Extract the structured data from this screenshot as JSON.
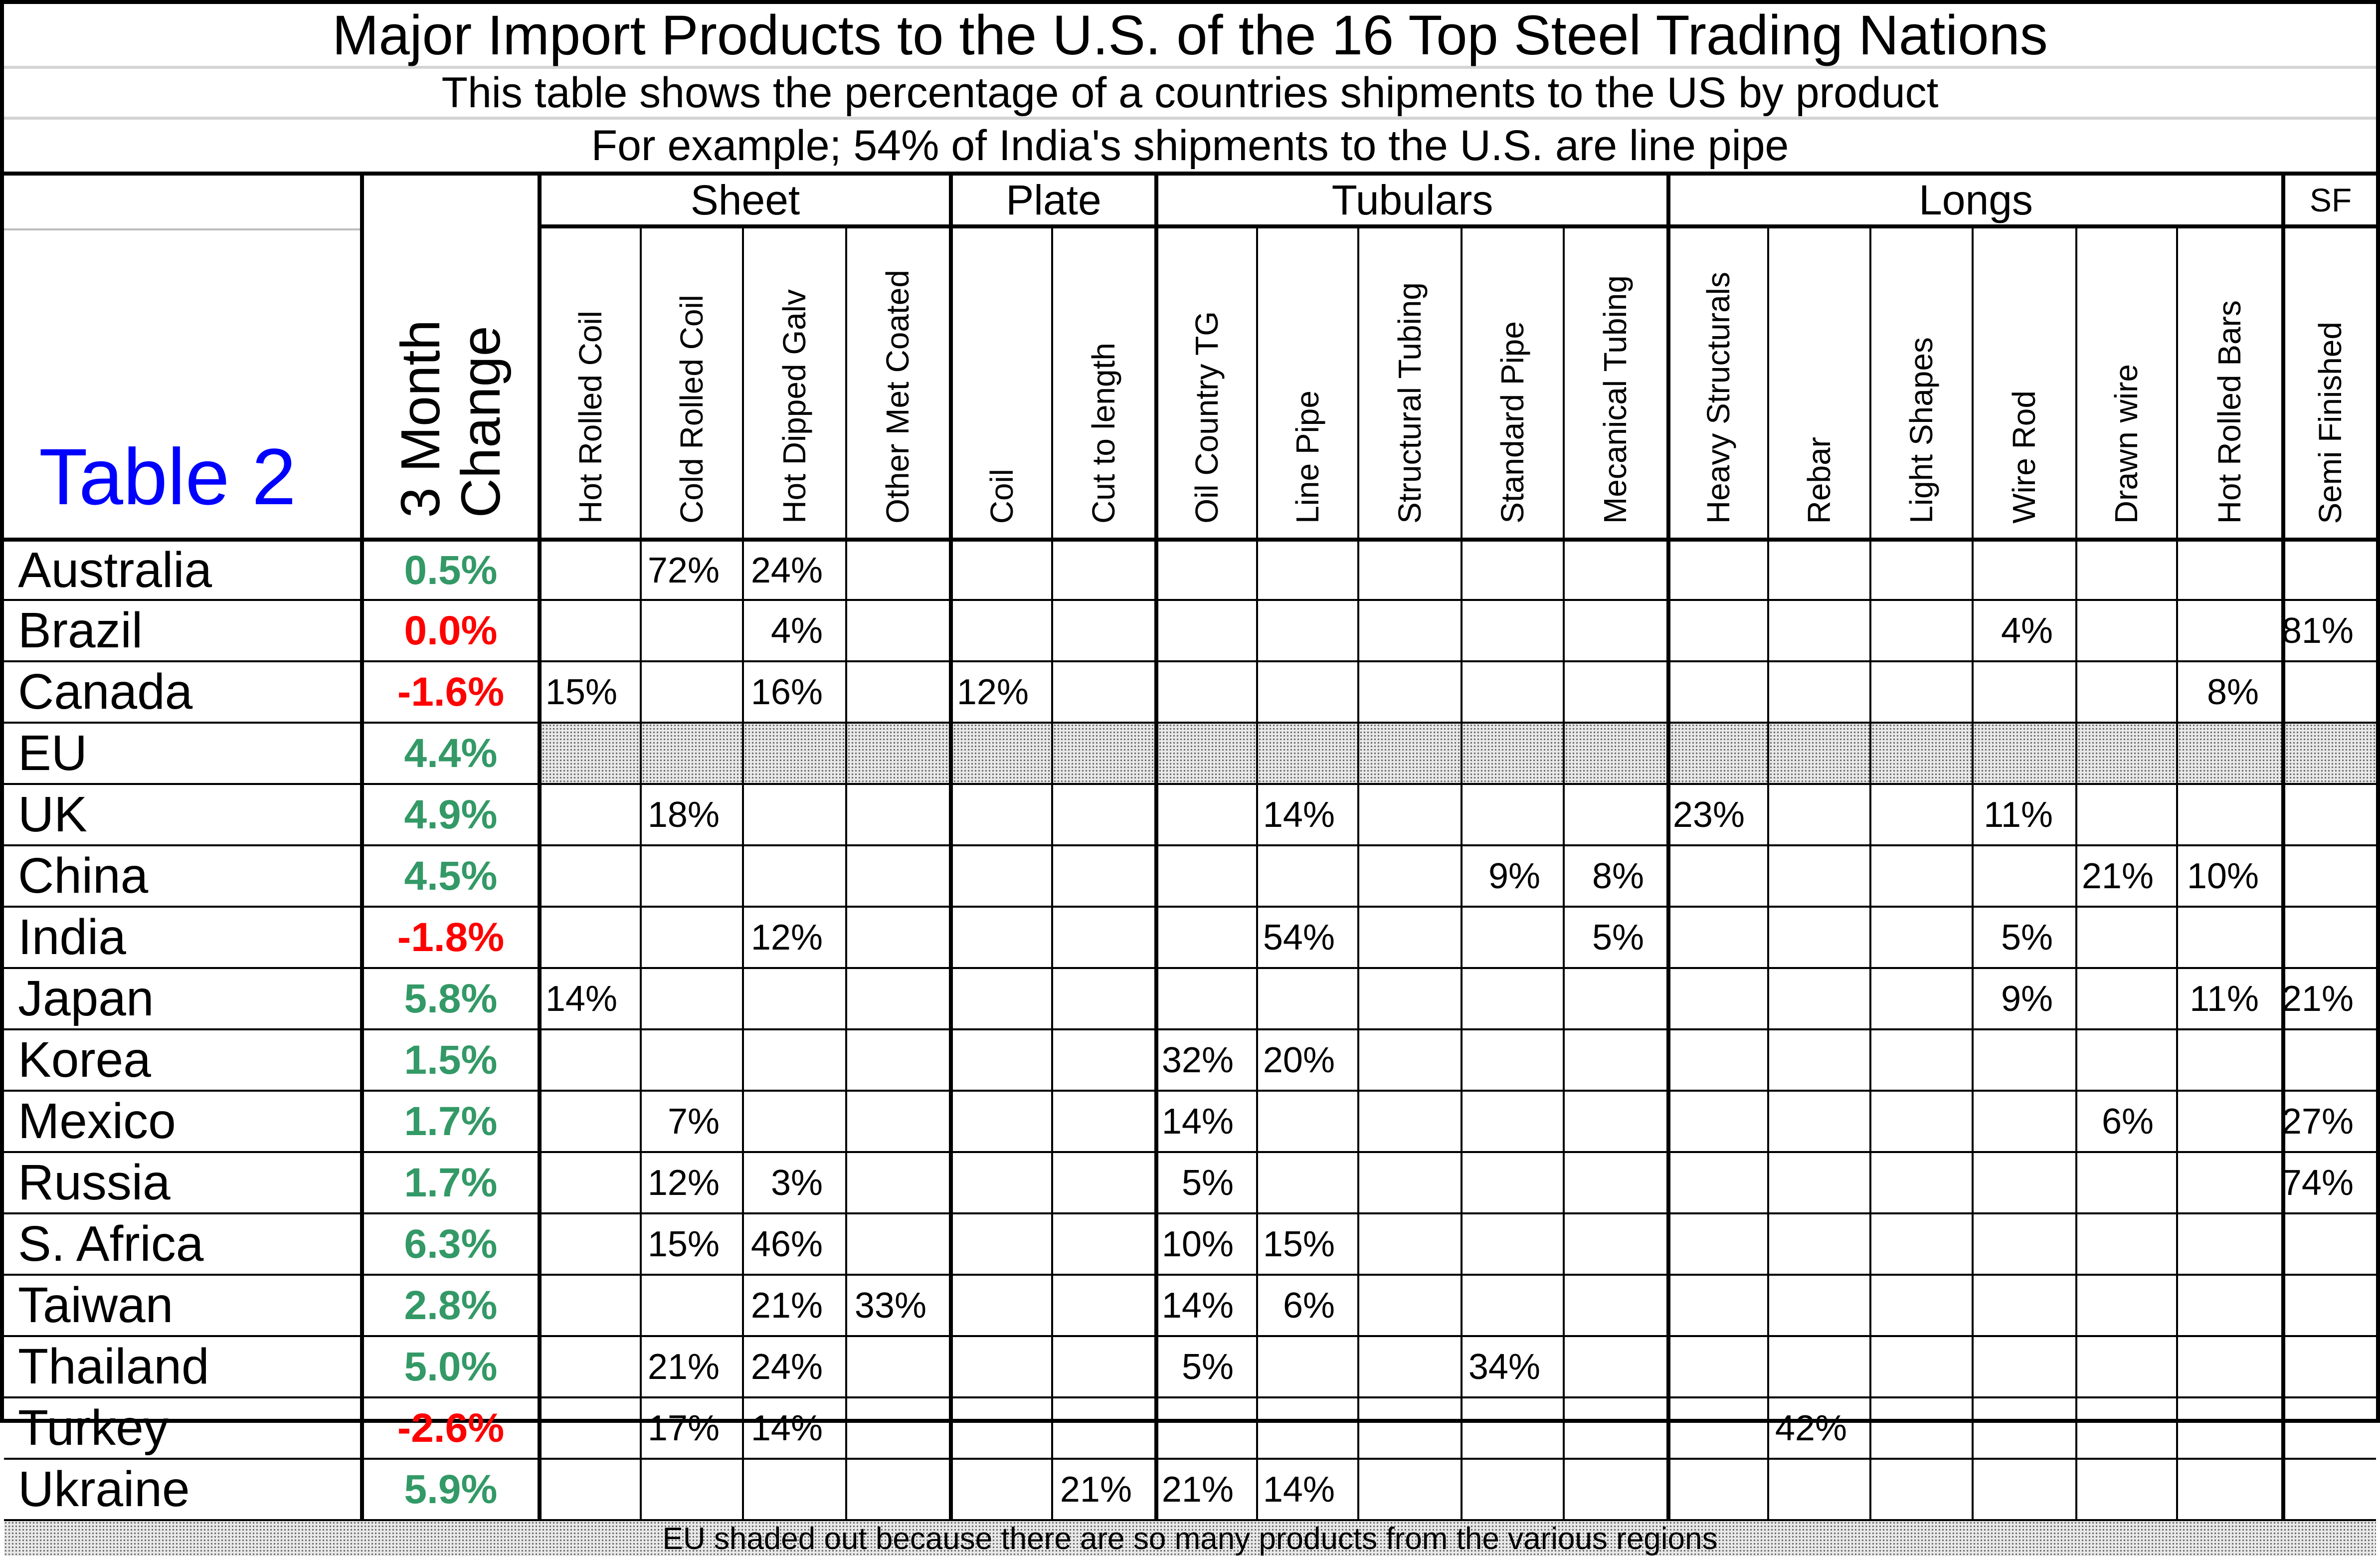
{
  "colors": {
    "positive_change": "#339966",
    "negative_change": "#ff0000",
    "table_label": "#0000ff",
    "shading_dots": "#646464",
    "shading_background": "#e8e8e8"
  },
  "chart_data": {
    "type": "table",
    "title": "Major Import Products to the U.S. of the 16 Top Steel Trading Nations",
    "subtitle": "This table shows the percentage of a countries shipments to the US by product",
    "example_note": "For example; 54% of India's shipments to the U.S. are line pipe",
    "table_label": "Table 2",
    "change_header_lines": [
      "3 Month",
      "Change"
    ],
    "groups": [
      {
        "label": "Sheet",
        "span": 4
      },
      {
        "label": "Plate",
        "span": 2
      },
      {
        "label": "Tubulars",
        "span": 5
      },
      {
        "label": "Longs",
        "span": 6
      },
      {
        "label": "SF",
        "span": 1
      }
    ],
    "columns": [
      "Hot Rolled Coil",
      "Cold Rolled Coil",
      "Hot Dipped Galv",
      "Other Met Coated",
      "Coil",
      "Cut to length",
      "Oil Country TG",
      "Line Pipe",
      "Structural Tubing",
      "Standard Pipe",
      "Mecanical Tubing",
      "Heavy Structurals",
      "Rebar",
      "Light Shapes",
      "Wire Rod",
      "Drawn wire",
      "Hot Rolled Bars",
      "Semi Finished"
    ],
    "rows": [
      {
        "country": "Australia",
        "change": "0.5%",
        "direction": "up",
        "shaded": false,
        "values": [
          "",
          "72%",
          "24%",
          "",
          "",
          "",
          "",
          "",
          "",
          "",
          "",
          "",
          "",
          "",
          "",
          "",
          "",
          ""
        ]
      },
      {
        "country": "Brazil",
        "change": "0.0%",
        "direction": "down",
        "shaded": false,
        "values": [
          "",
          "",
          "4%",
          "",
          "",
          "",
          "",
          "",
          "",
          "",
          "",
          "",
          "",
          "",
          "4%",
          "",
          "",
          "81%"
        ]
      },
      {
        "country": "Canada",
        "change": "-1.6%",
        "direction": "down",
        "shaded": false,
        "values": [
          "15%",
          "",
          "16%",
          "",
          "12%",
          "",
          "",
          "",
          "",
          "",
          "",
          "",
          "",
          "",
          "",
          "",
          "8%",
          ""
        ]
      },
      {
        "country": "EU",
        "change": "4.4%",
        "direction": "up",
        "shaded": true,
        "values": [
          "",
          "",
          "",
          "",
          "",
          "",
          "",
          "",
          "",
          "",
          "",
          "",
          "",
          "",
          "",
          "",
          "",
          ""
        ]
      },
      {
        "country": "UK",
        "change": "4.9%",
        "direction": "up",
        "shaded": false,
        "values": [
          "",
          "18%",
          "",
          "",
          "",
          "",
          "",
          "14%",
          "",
          "",
          "",
          "23%",
          "",
          "",
          "11%",
          "",
          "",
          ""
        ]
      },
      {
        "country": "China",
        "change": "4.5%",
        "direction": "up",
        "shaded": false,
        "values": [
          "",
          "",
          "",
          "",
          "",
          "",
          "",
          "",
          "",
          "9%",
          "8%",
          "",
          "",
          "",
          "",
          "21%",
          "10%",
          ""
        ]
      },
      {
        "country": "India",
        "change": "-1.8%",
        "direction": "down",
        "shaded": false,
        "values": [
          "",
          "",
          "12%",
          "",
          "",
          "",
          "",
          "54%",
          "",
          "",
          "5%",
          "",
          "",
          "",
          "5%",
          "",
          "",
          ""
        ]
      },
      {
        "country": "Japan",
        "change": "5.8%",
        "direction": "up",
        "shaded": false,
        "values": [
          "14%",
          "",
          "",
          "",
          "",
          "",
          "",
          "",
          "",
          "",
          "",
          "",
          "",
          "",
          "9%",
          "",
          "11%",
          "21%"
        ]
      },
      {
        "country": "Korea",
        "change": "1.5%",
        "direction": "up",
        "shaded": false,
        "values": [
          "",
          "",
          "",
          "",
          "",
          "",
          "32%",
          "20%",
          "",
          "",
          "",
          "",
          "",
          "",
          "",
          "",
          "",
          ""
        ]
      },
      {
        "country": "Mexico",
        "change": "1.7%",
        "direction": "up",
        "shaded": false,
        "values": [
          "",
          "7%",
          "",
          "",
          "",
          "",
          "14%",
          "",
          "",
          "",
          "",
          "",
          "",
          "",
          "",
          "6%",
          "",
          "27%"
        ]
      },
      {
        "country": "Russia",
        "change": "1.7%",
        "direction": "up",
        "shaded": false,
        "values": [
          "",
          "12%",
          "3%",
          "",
          "",
          "",
          "5%",
          "",
          "",
          "",
          "",
          "",
          "",
          "",
          "",
          "",
          "",
          "74%"
        ]
      },
      {
        "country": "S. Africa",
        "change": "6.3%",
        "direction": "up",
        "shaded": false,
        "values": [
          "",
          "15%",
          "46%",
          "",
          "",
          "",
          "10%",
          "15%",
          "",
          "",
          "",
          "",
          "",
          "",
          "",
          "",
          "",
          ""
        ]
      },
      {
        "country": "Taiwan",
        "change": "2.8%",
        "direction": "up",
        "shaded": false,
        "values": [
          "",
          "",
          "21%",
          "33%",
          "",
          "",
          "14%",
          "6%",
          "",
          "",
          "",
          "",
          "",
          "",
          "",
          "",
          "",
          ""
        ]
      },
      {
        "country": "Thailand",
        "change": "5.0%",
        "direction": "up",
        "shaded": false,
        "values": [
          "",
          "21%",
          "24%",
          "",
          "",
          "",
          "5%",
          "",
          "",
          "34%",
          "",
          "",
          "",
          "",
          "",
          "",
          "",
          ""
        ]
      },
      {
        "country": "Turkey",
        "change": "-2.6%",
        "direction": "down",
        "shaded": false,
        "values": [
          "",
          "17%",
          "14%",
          "",
          "",
          "",
          "",
          "",
          "",
          "",
          "",
          "",
          "42%",
          "",
          "",
          "",
          "",
          ""
        ]
      },
      {
        "country": "Ukraine",
        "change": "5.9%",
        "direction": "up",
        "shaded": false,
        "values": [
          "",
          "",
          "",
          "",
          "",
          "21%",
          "21%",
          "14%",
          "",
          "",
          "",
          "",
          "",
          "",
          "",
          "",
          "",
          ""
        ]
      }
    ],
    "footer_note": "EU shaded out because there are so many products from the various regions"
  }
}
